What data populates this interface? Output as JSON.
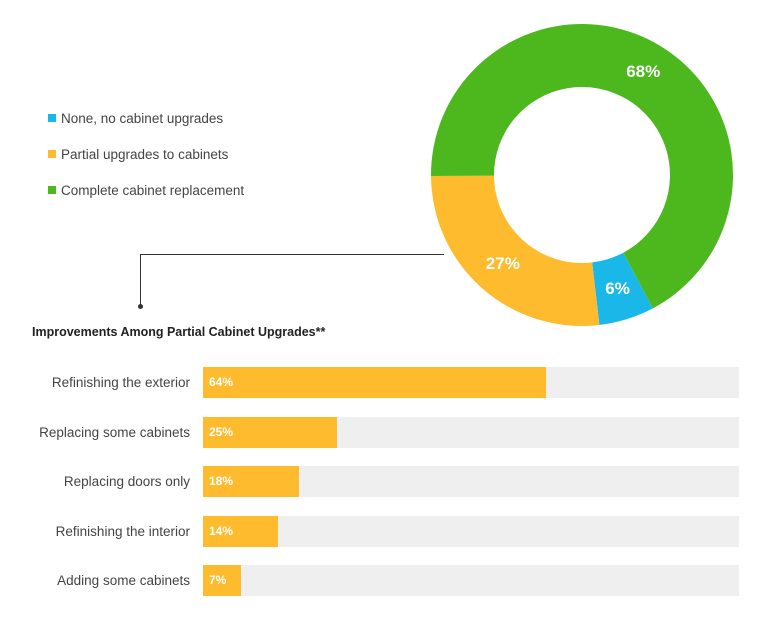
{
  "chart_data": [
    {
      "type": "pie",
      "title": "",
      "categories": [
        "None, no cabinet upgrades",
        "Partial upgrades to cabinets",
        "Complete cabinet replacement"
      ],
      "values": [
        6,
        27,
        68
      ],
      "labels": [
        "6%",
        "27%",
        "68%"
      ],
      "colors": [
        "#1ab8e8",
        "#fdbb2d",
        "#4cb81e"
      ],
      "legend_position": "left"
    },
    {
      "type": "bar",
      "orientation": "horizontal",
      "title": "Improvements Among Partial Cabinet Upgrades**",
      "categories": [
        "Refinishing the exterior",
        "Replacing some cabinets",
        "Replacing doors only",
        "Refinishing the interior",
        "Adding some cabinets"
      ],
      "values": [
        64,
        25,
        18,
        14,
        7
      ],
      "labels": [
        "64%",
        "25%",
        "18%",
        "14%",
        "7%"
      ],
      "xlim": [
        0,
        100
      ],
      "color": "#fdbb2d",
      "track_color": "#efefef"
    }
  ]
}
